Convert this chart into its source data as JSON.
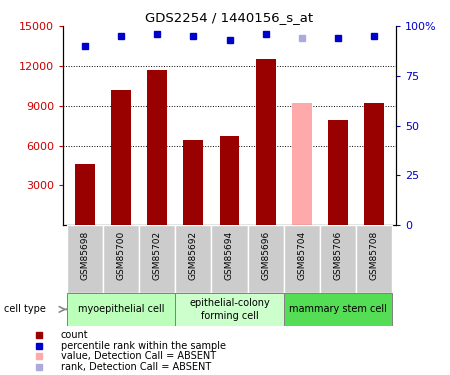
{
  "title": "GDS2254 / 1440156_s_at",
  "samples": [
    "GSM85698",
    "GSM85700",
    "GSM85702",
    "GSM85692",
    "GSM85694",
    "GSM85696",
    "GSM85704",
    "GSM85706",
    "GSM85708"
  ],
  "counts": [
    4600,
    10200,
    11700,
    6400,
    6700,
    12500,
    9200,
    7900,
    9200
  ],
  "absent": [
    false,
    false,
    false,
    false,
    false,
    false,
    true,
    false,
    false
  ],
  "percentile_ranks": [
    90,
    95,
    96,
    95,
    93,
    96,
    94,
    94,
    95
  ],
  "rank_absent": [
    false,
    false,
    false,
    false,
    false,
    false,
    true,
    false,
    false
  ],
  "groups": [
    {
      "label": "myoepithelial cell",
      "indices": [
        0,
        1,
        2
      ],
      "color": "#bbffbb"
    },
    {
      "label": "epithelial-colony\nforming cell",
      "indices": [
        3,
        4,
        5
      ],
      "color": "#ccffcc"
    },
    {
      "label": "mammary stem cell",
      "indices": [
        6,
        7,
        8
      ],
      "color": "#55dd55"
    }
  ],
  "bar_color_present": "#990000",
  "bar_color_absent": "#ffaaaa",
  "rank_color_present": "#0000cc",
  "rank_color_absent": "#aaaadd",
  "ylim_left": [
    0,
    15000
  ],
  "ylim_right": [
    0,
    100
  ],
  "yticks_left": [
    3000,
    6000,
    9000,
    12000,
    15000
  ],
  "yticks_right": [
    0,
    25,
    50,
    75,
    100
  ],
  "background_color": "#ffffff",
  "plot_bg_color": "#ffffff",
  "sample_box_color": "#cccccc",
  "tick_label_color_left": "#cc0000",
  "tick_label_color_right": "#0000cc"
}
